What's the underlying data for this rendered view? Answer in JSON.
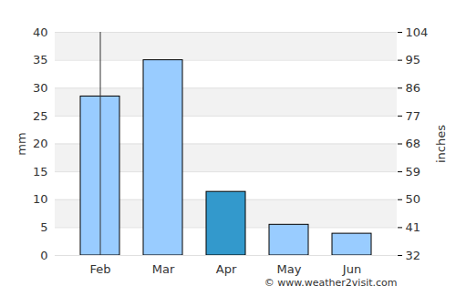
{
  "chart_data": {
    "type": "bar",
    "categories": [
      "Feb",
      "Mar",
      "Apr",
      "May",
      "Jun"
    ],
    "values": [
      28.5,
      35,
      11.4,
      5.5,
      3.9
    ],
    "colors": [
      "#99ccff",
      "#99ccff",
      "#3399cc",
      "#99ccff",
      "#99ccff"
    ],
    "y_label": "mm",
    "ylim": [
      0,
      40
    ],
    "yticks": [
      0,
      5,
      10,
      15,
      20,
      25,
      30,
      35,
      40
    ],
    "y2_label": "inches",
    "y2lim": [
      32,
      104
    ],
    "y2ticks": [
      32,
      41,
      50,
      59,
      68,
      77,
      86,
      95,
      104
    ],
    "grid": true,
    "caption": "© www.weather2visit.com"
  }
}
